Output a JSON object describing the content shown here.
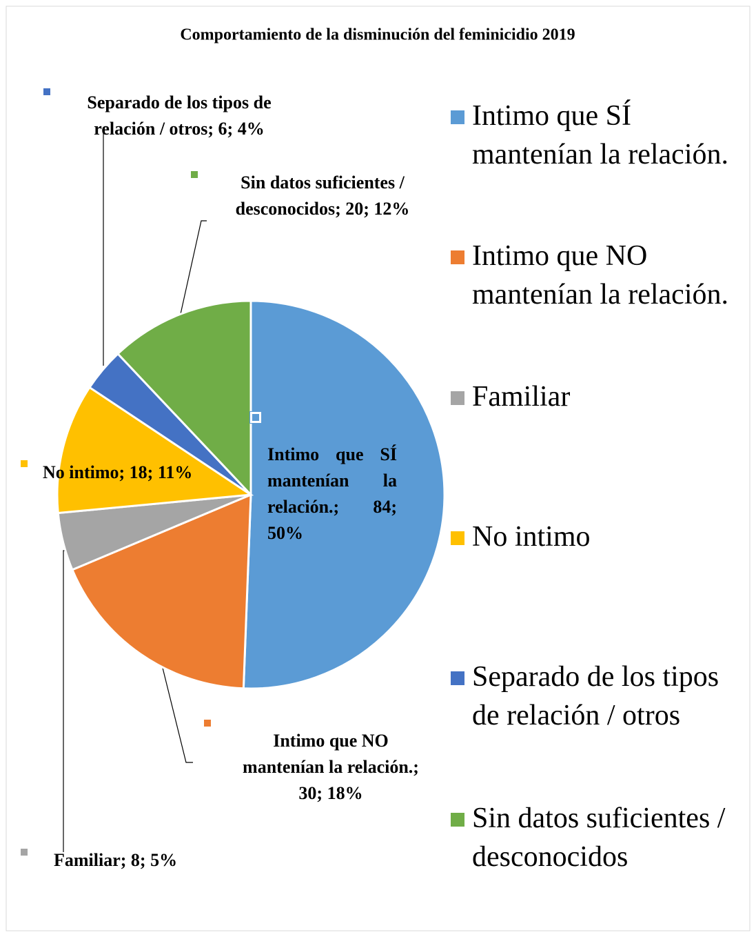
{
  "chart_data": {
    "type": "pie",
    "title": "Comportamiento de la disminución del feminicidio 2019",
    "categories": [
      "Intimo que SÍ mantenían la relación.",
      "Intimo que NO mantenían la relación.",
      "Familiar",
      "No intimo",
      "Separado de los tipos de relación / otros",
      "Sin datos suficientes / desconocidos"
    ],
    "values": [
      84,
      30,
      8,
      18,
      6,
      20
    ],
    "value_labels": [
      "Intimo que SÍ mantenían la relación.; 84; 50%",
      "Intimo que NO mantenían la relación.; 30; 18%",
      "Familiar; 8; 5%",
      "No intimo; 18; 11%",
      "Separado de los tipos de relación / otros; 6; 4%",
      "Sin datos suficientes / desconocidos; 20; 12%"
    ],
    "colors": [
      "#5b9bd5",
      "#ed7d31",
      "#a5a5a5",
      "#ffc000",
      "#4472c4",
      "#70ad47"
    ],
    "legend": "right"
  }
}
